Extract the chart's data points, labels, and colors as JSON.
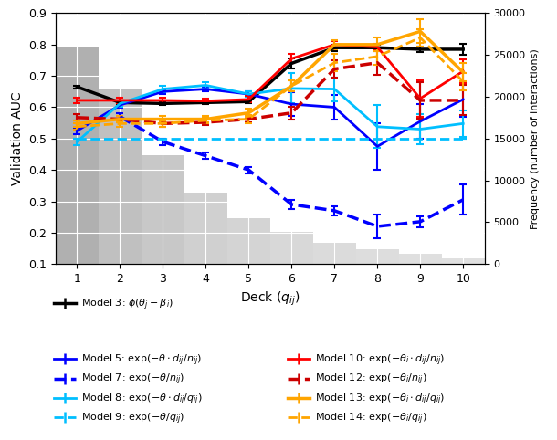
{
  "decks": [
    1,
    2,
    3,
    4,
    5,
    6,
    7,
    8,
    9,
    10
  ],
  "bar_heights": [
    26000,
    21000,
    13000,
    8500,
    5500,
    3800,
    2500,
    1800,
    1200,
    700
  ],
  "bar_colors": [
    "#b0b0b0",
    "#c0c0c0",
    "#c8c8c8",
    "#d0d0d0",
    "#d4d4d4",
    "#d8d8d8",
    "#dbdbdb",
    "#dddddd",
    "#dfdfdf",
    "#e0e0e0"
  ],
  "model3": {
    "x": [
      1,
      2,
      3,
      4,
      5,
      6,
      7,
      8,
      9,
      10
    ],
    "y": [
      0.665,
      0.615,
      0.612,
      0.615,
      0.618,
      0.74,
      0.79,
      0.79,
      0.785,
      0.785
    ],
    "yerr": [
      0.004,
      0.004,
      0.004,
      0.004,
      0.004,
      0.015,
      0.01,
      0.008,
      0.008,
      0.018
    ],
    "color": "#000000",
    "linestyle": "solid",
    "linewidth": 2.5,
    "label": "Model 3: $\\phi(\\theta_j - \\beta_i)$"
  },
  "model5": {
    "x": [
      1,
      2,
      3,
      4,
      5,
      6,
      7,
      8,
      9,
      10
    ],
    "y": [
      0.525,
      0.607,
      0.65,
      0.658,
      0.642,
      0.61,
      0.6,
      0.475,
      0.555,
      0.625
    ],
    "yerr": [
      0.01,
      0.008,
      0.008,
      0.008,
      0.008,
      0.038,
      0.038,
      0.075,
      0.055,
      0.055
    ],
    "color": "#0000ff",
    "linestyle": "solid",
    "linewidth": 2.0,
    "label": "Model 5: $\\exp(-\\theta \\cdot d_{ij}/n_{ij})$"
  },
  "model7": {
    "x": [
      2,
      3,
      4,
      5,
      6,
      7,
      8,
      9,
      10
    ],
    "y": [
      0.57,
      0.49,
      0.445,
      0.4,
      0.29,
      0.27,
      0.22,
      0.235,
      0.305
    ],
    "yerr": [
      0.012,
      0.01,
      0.01,
      0.01,
      0.015,
      0.015,
      0.038,
      0.018,
      0.048
    ],
    "color": "#0000ff",
    "linestyle": "dashed",
    "linewidth": 2.5,
    "label": "Model 7: $\\exp(-\\theta/n_{ij})$"
  },
  "model8": {
    "x": [
      1,
      2,
      3,
      4,
      5,
      6,
      7,
      8,
      9,
      10
    ],
    "y": [
      0.49,
      0.612,
      0.658,
      0.67,
      0.642,
      0.66,
      0.658,
      0.538,
      0.53,
      0.548
    ],
    "yerr": [
      0.01,
      0.01,
      0.01,
      0.01,
      0.01,
      0.048,
      0.038,
      0.068,
      0.048,
      0.042
    ],
    "color": "#00bfff",
    "linestyle": "solid",
    "linewidth": 2.0,
    "label": "Model 8: $\\exp(-\\theta \\cdot d_{ij}/q_{ij})$"
  },
  "model9": {
    "x": [
      1,
      10
    ],
    "y": [
      0.5,
      0.5
    ],
    "yerr": [
      0.0,
      0.0
    ],
    "color": "#00bfff",
    "linestyle": "dashed",
    "linewidth": 2.0,
    "label": "Model 9: $\\exp(-\\theta/q_{ij})$"
  },
  "model10": {
    "x": [
      1,
      2,
      3,
      4,
      5,
      6,
      7,
      8,
      9,
      10
    ],
    "y": [
      0.622,
      0.622,
      0.622,
      0.62,
      0.625,
      0.755,
      0.8,
      0.792,
      0.628,
      0.715
    ],
    "yerr": [
      0.008,
      0.008,
      0.008,
      0.008,
      0.01,
      0.014,
      0.01,
      0.01,
      0.058,
      0.038
    ],
    "color": "#ff0000",
    "linestyle": "solid",
    "linewidth": 2.0,
    "label": "Model 10: $\\exp(-\\theta_i \\cdot d_{ij}/n_{ij})$"
  },
  "model12": {
    "x": [
      1,
      2,
      3,
      4,
      5,
      6,
      7,
      8,
      9,
      10
    ],
    "y": [
      0.567,
      0.562,
      0.548,
      0.552,
      0.562,
      0.582,
      0.722,
      0.742,
      0.622,
      0.622
    ],
    "yerr": [
      0.01,
      0.01,
      0.01,
      0.01,
      0.01,
      0.02,
      0.028,
      0.038,
      0.058,
      0.048
    ],
    "color": "#cc0000",
    "linestyle": "dashed",
    "linewidth": 2.5,
    "label": "Model 12: $\\exp(-\\theta_i/n_{ij})$"
  },
  "model13": {
    "x": [
      1,
      2,
      3,
      4,
      5,
      6,
      7,
      8,
      9,
      10
    ],
    "y": [
      0.548,
      0.562,
      0.562,
      0.562,
      0.582,
      0.668,
      0.8,
      0.8,
      0.842,
      0.712
    ],
    "yerr": [
      0.01,
      0.01,
      0.01,
      0.01,
      0.014,
      0.018,
      0.014,
      0.022,
      0.038,
      0.028
    ],
    "color": "#ffa500",
    "linestyle": "solid",
    "linewidth": 2.5,
    "label": "Model 13: $\\exp(-\\theta_i \\cdot d_{ij}/q_{ij})$"
  },
  "model14": {
    "x": [
      1,
      2,
      3,
      4,
      5,
      6,
      7,
      8,
      9,
      10
    ],
    "y": [
      0.538,
      0.548,
      0.548,
      0.558,
      0.562,
      0.668,
      0.742,
      0.762,
      0.822,
      0.682
    ],
    "yerr": [
      0.01,
      0.01,
      0.01,
      0.01,
      0.014,
      0.018,
      0.028,
      0.028,
      0.028,
      0.028
    ],
    "color": "#ffa500",
    "linestyle": "dashed",
    "linewidth": 2.0,
    "label": "Model 14: $\\exp(-\\theta_i/q_{ij})$"
  },
  "xlabel": "Deck $(q_{ij})$",
  "ylabel_left": "Validation AUC",
  "ylabel_right": "Frequency (number of interactions)",
  "ylim_left": [
    0.1,
    0.9
  ],
  "ylim_right": [
    0,
    30000
  ],
  "xlim_left": 0.5,
  "xlim_right": 10.5,
  "yticks_left": [
    0.1,
    0.2,
    0.3,
    0.4,
    0.5,
    0.6,
    0.7,
    0.8,
    0.9
  ],
  "yticks_right": [
    0,
    5000,
    10000,
    15000,
    20000,
    25000,
    30000
  ],
  "xticks": [
    1,
    2,
    3,
    4,
    5,
    6,
    7,
    8,
    9,
    10
  ],
  "bg_color": "#e8e8f0",
  "grid_color": "#ffffff"
}
